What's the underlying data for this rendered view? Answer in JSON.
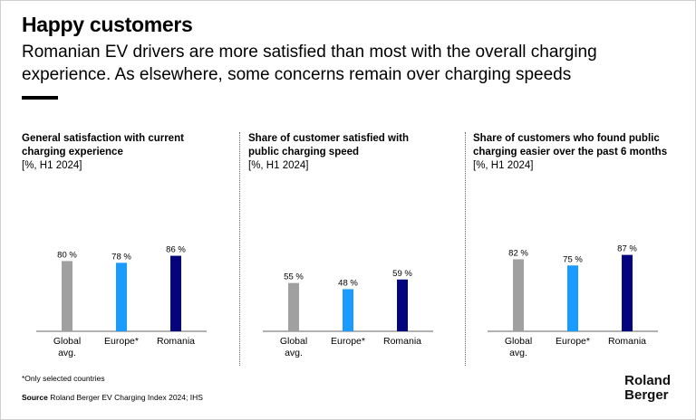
{
  "header": {
    "title": "Happy customers",
    "subtitle": "Romanian EV drivers are more satisfied than most with the overall charging experience. As elsewhere, some concerns remain over charging speeds"
  },
  "colors": {
    "Global avg.": "#a0a0a0",
    "Europe*": "#1a9bff",
    "Romania": "#04047d"
  },
  "chart_data": [
    {
      "type": "bar",
      "title": "General satisfaction with current charging experience",
      "unit": "[%, H1 2024]",
      "categories": [
        "Global avg.",
        "Europe*",
        "Romania"
      ],
      "values": [
        80,
        78,
        86
      ],
      "labels": [
        "80 %",
        "78 %",
        "86 %"
      ]
    },
    {
      "type": "bar",
      "title": "Share of customer satisfied with public charging speed",
      "unit": "[%, H1 2024]",
      "categories": [
        "Global avg.",
        "Europe*",
        "Romania"
      ],
      "values": [
        55,
        48,
        59
      ],
      "labels": [
        "55 %",
        "48 %",
        "59 %"
      ]
    },
    {
      "type": "bar",
      "title": "Share of customers who found public charging easier over the past 6 months",
      "unit": "[%, H1 2024]",
      "categories": [
        "Global avg.",
        "Europe*",
        "Romania"
      ],
      "values": [
        82,
        75,
        87
      ],
      "labels": [
        "82 %",
        "75 %",
        "87 %"
      ]
    }
  ],
  "footer": {
    "note": "*Only selected countries",
    "source_label": "Source",
    "source": "Roland Berger EV Charging Index 2024; IHS",
    "logo": "Roland Berger"
  }
}
